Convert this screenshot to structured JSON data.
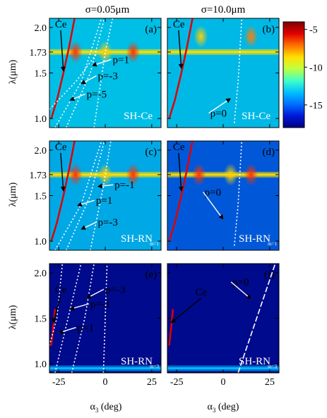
{
  "figure": {
    "column_titles": [
      "σ=0.05μm",
      "σ=10.0μm"
    ],
    "ylabel": "λ(μm)",
    "xlabel_main": "α",
    "xlabel_sub": "3",
    "xlabel_unit": " (deg)",
    "colorbar": {
      "ticks": [
        "-5",
        "-10",
        "-15"
      ],
      "tick_values": [
        -5,
        -10,
        -15
      ],
      "range": [
        -18,
        -4
      ],
      "colors": [
        "#000080",
        "#0018d8",
        "#0070ff",
        "#00c0ff",
        "#40ffc8",
        "#c0ff40",
        "#ffe000",
        "#ff7000",
        "#e00000",
        "#800000"
      ]
    }
  },
  "chart_data": [
    {
      "type": "heatmap",
      "panel": "(a)",
      "tag": "SH-Ce",
      "tag_sub": "",
      "column_title": "σ=0.05μm",
      "xlim": [
        -30,
        30
      ],
      "ylim": [
        0.9,
        2.1
      ],
      "yticks": [
        1.0,
        1.5,
        1.73,
        2.0
      ],
      "yticklabels": [
        "1.0",
        "1.5",
        "1.73",
        "2.0"
      ],
      "xticks": [
        -25,
        0,
        25
      ],
      "xticklabels": [
        "",
        "",
        ""
      ],
      "background": "#00bfe6",
      "glow": [
        {
          "x": -16,
          "y": 1.73,
          "color": "#ff3000"
        },
        {
          "x": 15,
          "y": 1.73,
          "color": "#ff3000"
        },
        {
          "x": 0,
          "y": 1.73,
          "color": "#ffd000"
        }
      ],
      "band": {
        "y": 1.73,
        "color": "#ffe000"
      },
      "curves": [
        {
          "name": "Ce",
          "points": [
            [
              -29,
              1.0
            ],
            [
              -26,
              1.2
            ],
            [
              -22.5,
              1.5
            ],
            [
              -19.5,
              1.78
            ],
            [
              -16.5,
              2.1
            ]
          ],
          "color": "#e00000",
          "dash": ""
        },
        {
          "name": "p=1",
          "points": [
            [
              -21,
              0.9
            ],
            [
              -8,
              1.5
            ],
            [
              -0.5,
              2.1
            ]
          ],
          "color": "#ffffff",
          "dash": "2,3"
        },
        {
          "name": "p=-3",
          "points": [
            [
              -27,
              0.9
            ],
            [
              -13,
              1.4
            ],
            [
              -2,
              2.1
            ]
          ],
          "color": "#ffffff",
          "dash": "2,3"
        },
        {
          "name": "p=-5",
          "points": [
            [
              -30,
              1.1
            ],
            [
              -16,
              1.4
            ],
            [
              -5,
              1.7
            ]
          ],
          "color": "#ffffff",
          "dash": "2,3"
        },
        {
          "name": "",
          "points": [
            [
              -6,
              0.9
            ],
            [
              0,
              1.73
            ],
            [
              4,
              2.1
            ]
          ],
          "color": "#ffffff",
          "dash": "2,3"
        }
      ],
      "annotations": [
        {
          "label": "Ce",
          "tx": -27,
          "ty": 2.0,
          "ax": -22.5,
          "ay": 1.52
        },
        {
          "label": "p=1",
          "tx": 4,
          "ty": 1.61,
          "ax": -7,
          "ay": 1.58
        },
        {
          "label": "p=-3",
          "tx": -4,
          "ty": 1.43,
          "ax": -13,
          "ay": 1.38
        },
        {
          "label": "p=-5",
          "tx": -10,
          "ty": 1.23,
          "ax": -19,
          "ay": 1.2
        }
      ]
    },
    {
      "type": "heatmap",
      "panel": "(b)",
      "tag": "SH-Ce",
      "tag_sub": "",
      "column_title": "σ=10.0μm",
      "xlim": [
        -30,
        30
      ],
      "ylim": [
        0.9,
        2.1
      ],
      "yticks": [
        1.0,
        1.5,
        1.73,
        2.0
      ],
      "yticklabels": [
        "",
        "",
        "",
        ""
      ],
      "xticks": [
        -25,
        0,
        25
      ],
      "xticklabels": [
        "",
        "",
        ""
      ],
      "background": "#00b8e6",
      "glow": [
        {
          "x": -12,
          "y": 1.9,
          "color": "#ffd000"
        },
        {
          "x": 15,
          "y": 1.9,
          "color": "#ff8000"
        }
      ],
      "band": {
        "y": 1.73,
        "color": "#ffe000"
      },
      "curves": [
        {
          "name": "Ce",
          "points": [
            [
              -29,
              1.0
            ],
            [
              -26,
              1.2
            ],
            [
              -22.5,
              1.5
            ],
            [
              -19.5,
              1.78
            ],
            [
              -16.5,
              2.1
            ]
          ],
          "color": "#e00000",
          "dash": ""
        },
        {
          "name": "p=0",
          "points": [
            [
              6,
              0.95
            ],
            [
              8,
              1.4
            ],
            [
              10,
              2.1
            ]
          ],
          "color": "#ffffff",
          "dash": "2,3"
        }
      ],
      "annotations": [
        {
          "label": "Ce",
          "tx": -27,
          "ty": 2.0,
          "ax": -22.5,
          "ay": 1.55
        },
        {
          "label": "p=0",
          "tx": -7,
          "ty": 1.02,
          "ax": 4,
          "ay": 1.22
        }
      ]
    },
    {
      "type": "heatmap",
      "panel": "(c)",
      "tag": "SH-RN",
      "tag_sub": "m=1",
      "column_title": "",
      "xlim": [
        -30,
        30
      ],
      "ylim": [
        0.9,
        2.1
      ],
      "yticks": [
        1.0,
        1.5,
        1.73,
        2.0
      ],
      "yticklabels": [
        "1.0",
        "1.5",
        "1.73",
        "2.0"
      ],
      "xticks": [
        -25,
        0,
        25
      ],
      "xticklabels": [
        "",
        "",
        ""
      ],
      "background": "#00a8e6",
      "glow": [
        {
          "x": -16,
          "y": 1.73,
          "color": "#ff3000"
        },
        {
          "x": 15,
          "y": 1.73,
          "color": "#ff3000"
        },
        {
          "x": 0,
          "y": 1.73,
          "color": "#ffd000"
        }
      ],
      "band": {
        "y": 1.73,
        "color": "#ffe000"
      },
      "curves": [
        {
          "name": "Ce",
          "points": [
            [
              -29,
              1.0
            ],
            [
              -26,
              1.2
            ],
            [
              -22.5,
              1.5
            ],
            [
              -19.5,
              1.78
            ],
            [
              -16.5,
              2.1
            ]
          ],
          "color": "#e00000",
          "dash": ""
        },
        {
          "name": "p=-1",
          "points": [
            [
              -8,
              0.9
            ],
            [
              -1,
              1.6
            ],
            [
              3,
              2.1
            ]
          ],
          "color": "#ffffff",
          "dash": "2,3"
        },
        {
          "name": "p=1",
          "points": [
            [
              -21,
              0.9
            ],
            [
              -8,
              1.5
            ],
            [
              -0.5,
              2.1
            ]
          ],
          "color": "#ffffff",
          "dash": "2,3"
        },
        {
          "name": "p=-3",
          "points": [
            [
              -27,
              0.9
            ],
            [
              -13,
              1.4
            ],
            [
              -2,
              2.1
            ]
          ],
          "color": "#ffffff",
          "dash": "2,3"
        }
      ],
      "annotations": [
        {
          "label": "Ce",
          "tx": -27,
          "ty": 2.0,
          "ax": -22.5,
          "ay": 1.55
        },
        {
          "label": "p=-1",
          "tx": 5,
          "ty": 1.58,
          "ax": -4,
          "ay": 1.6
        },
        {
          "label": "p=1",
          "tx": -5,
          "ty": 1.41,
          "ax": -15,
          "ay": 1.39
        },
        {
          "label": "p=-3",
          "tx": -4,
          "ty": 1.17,
          "ax": -13,
          "ay": 1.13
        }
      ]
    },
    {
      "type": "heatmap",
      "panel": "(d)",
      "tag": "SH-RN",
      "tag_sub": "m=1",
      "column_title": "",
      "xlim": [
        -30,
        30
      ],
      "ylim": [
        0.9,
        2.1
      ],
      "yticks": [
        1.0,
        1.5,
        1.73,
        2.0
      ],
      "yticklabels": [
        "",
        "",
        "",
        ""
      ],
      "xticks": [
        -25,
        0,
        25
      ],
      "xticklabels": [
        "",
        "",
        ""
      ],
      "background": "#0058d8",
      "glow": [
        {
          "x": -13,
          "y": 1.73,
          "color": "#ff3000"
        },
        {
          "x": 15,
          "y": 1.73,
          "color": "#ff3000"
        },
        {
          "x": 4,
          "y": 1.73,
          "color": "#ffd000"
        }
      ],
      "band": {
        "y": 1.73,
        "color": "#ffe000"
      },
      "curves": [
        {
          "name": "Ce",
          "points": [
            [
              -29,
              1.0
            ],
            [
              -26,
              1.2
            ],
            [
              -22.5,
              1.5
            ],
            [
              -19.5,
              1.78
            ],
            [
              -16.5,
              2.1
            ]
          ],
          "color": "#e00000",
          "dash": ""
        },
        {
          "name": "p=0",
          "points": [
            [
              6,
              0.95
            ],
            [
              8,
              1.4
            ],
            [
              10,
              2.1
            ]
          ],
          "color": "#ffffff",
          "dash": "2,3"
        }
      ],
      "annotations": [
        {
          "label": "Ce",
          "tx": -27,
          "ty": 2.0,
          "ax": -22.5,
          "ay": 1.55
        },
        {
          "label": "p=0",
          "tx": -10,
          "ty": 1.5,
          "ax": 0,
          "ay": 1.24
        }
      ]
    },
    {
      "type": "heatmap",
      "panel": "(e)",
      "tag": "SH-RN",
      "tag_sub": "m=3",
      "column_title": "",
      "xlim": [
        -30,
        30
      ],
      "ylim": [
        0.9,
        2.1
      ],
      "yticks": [
        1.0,
        1.5,
        2.0
      ],
      "yticklabels": [
        "1.0",
        "1.5",
        "2.0"
      ],
      "xticks": [
        -25,
        0,
        25
      ],
      "xticklabels": [
        "-25",
        "0",
        "25"
      ],
      "background": "#000a8c",
      "glow": [],
      "band": {
        "y": 0.95,
        "color": "#00c0ff"
      },
      "curves": [
        {
          "name": "Ce",
          "points": [
            [
              -29,
              1.2
            ],
            [
              -28,
              1.4
            ],
            [
              -27,
              1.6
            ]
          ],
          "color": "#e00000",
          "dash": ""
        },
        {
          "name": "p=-3",
          "points": [
            [
              -18,
              0.9
            ],
            [
              -11,
              1.5
            ],
            [
              -6,
              2.1
            ]
          ],
          "color": "#ffffff",
          "dash": "2,3"
        },
        {
          "name": "p=-1",
          "points": [
            [
              -27,
              0.9
            ],
            [
              -20,
              1.5
            ],
            [
              -13,
              2.1
            ]
          ],
          "color": "#ffffff",
          "dash": "2,3"
        },
        {
          "name": "p=1",
          "points": [
            [
              -30,
              1.2
            ],
            [
              -26,
              1.5
            ],
            [
              -23,
              2.1
            ]
          ],
          "color": "#ffffff",
          "dash": "2,3"
        },
        {
          "name": "",
          "points": [
            [
              -1,
              0.9
            ],
            [
              0,
              1.5
            ],
            [
              1,
              2.1
            ]
          ],
          "color": "#ffffff",
          "dash": "2,3"
        }
      ],
      "annotations": [
        {
          "label": "Ce",
          "tx": -27,
          "ty": 1.78,
          "ax": -28,
          "ay": 1.45
        },
        {
          "label": "p=-3",
          "tx": 0,
          "ty": 1.78,
          "ax": -10,
          "ay": 1.72
        },
        {
          "label": "p=-1",
          "tx": -8,
          "ty": 1.62,
          "ax": -19,
          "ay": 1.6
        },
        {
          "label": "p=1",
          "tx": -15,
          "ty": 1.36,
          "ax": -25,
          "ay": 1.34
        }
      ]
    },
    {
      "type": "heatmap",
      "panel": "(f)",
      "tag": "SH-RN",
      "tag_sub": "m=3",
      "column_title": "",
      "xlim": [
        -30,
        30
      ],
      "ylim": [
        0.9,
        2.1
      ],
      "yticks": [
        1.0,
        1.5,
        2.0
      ],
      "yticklabels": [
        "",
        "",
        ""
      ],
      "xticks": [
        -25,
        0,
        25
      ],
      "xticklabels": [
        "-25",
        "0",
        "25"
      ],
      "background": "#000a8c",
      "glow": [],
      "band": {
        "y": 0.95,
        "color": "#00c0ff"
      },
      "curves": [
        {
          "name": "Ce",
          "points": [
            [
              -29,
              1.2
            ],
            [
              -28,
              1.4
            ],
            [
              -27,
              1.6
            ]
          ],
          "color": "#e00000",
          "dash": ""
        },
        {
          "name": "p=0",
          "points": [
            [
              8,
              0.9
            ],
            [
              18,
              1.5
            ],
            [
              28,
              2.1
            ]
          ],
          "color": "#ffffff",
          "dash": "8,3"
        }
      ],
      "annotations": [
        {
          "label": "Ce",
          "tx": -15,
          "ty": 1.75,
          "ax": -28,
          "ay": 1.45
        },
        {
          "label": "p=0",
          "tx": 5,
          "ty": 1.86,
          "ax": 15,
          "ay": 1.71
        }
      ]
    }
  ]
}
